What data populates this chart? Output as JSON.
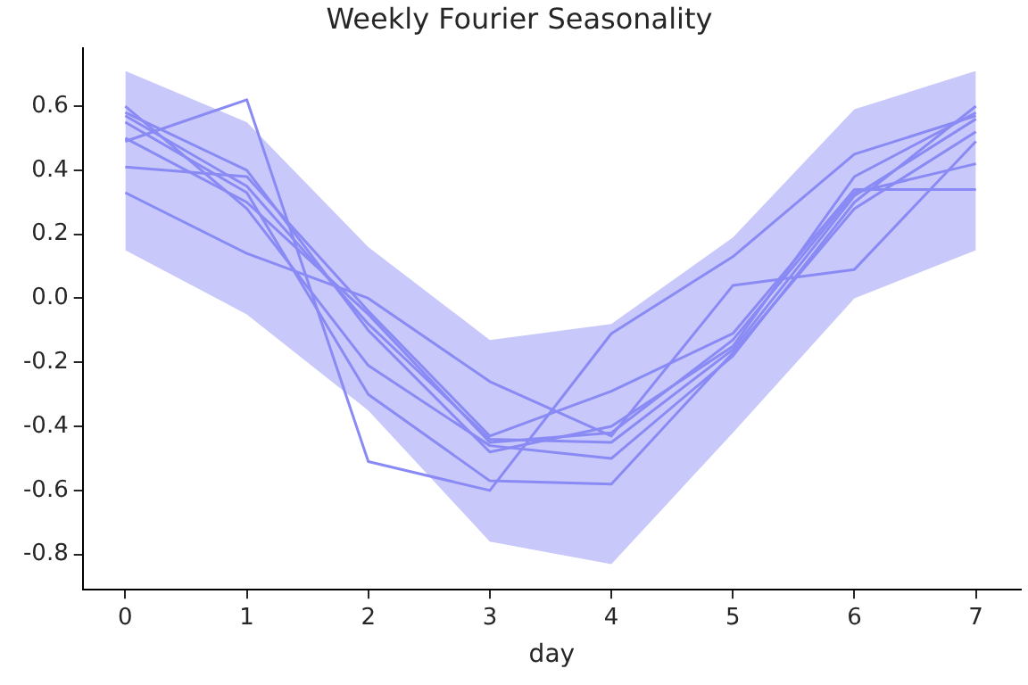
{
  "chart_data": {
    "type": "line",
    "title": "Weekly Fourier Seasonality",
    "xlabel": "day",
    "x": [
      0,
      1,
      2,
      3,
      4,
      5,
      6,
      7
    ],
    "xlim": [
      -0.35,
      7.37
    ],
    "xticks": [
      0,
      1,
      2,
      3,
      4,
      5,
      6,
      7
    ],
    "ylim": [
      -0.91,
      0.78
    ],
    "yticks": [
      -0.8,
      -0.6,
      -0.4,
      -0.2,
      {
        "value": 0,
        "label": "0.0"
      },
      0.2,
      0.4,
      0.6
    ],
    "grid": false,
    "legend": false,
    "marker": "none",
    "line_style": "solid",
    "series": [
      {
        "type": "area",
        "color": "#c8c8fa",
        "values": [
          null,
          null,
          null,
          null,
          null,
          null,
          null,
          null
        ],
        "lower": [
          0.15,
          -0.05,
          -0.35,
          -0.76,
          -0.83,
          -0.42,
          0.0,
          0.15
        ],
        "upper": [
          0.71,
          0.55,
          0.16,
          -0.13,
          -0.08,
          0.19,
          0.59,
          0.71
        ]
      },
      {
        "color": "#8a8af5",
        "values": [
          0.49,
          0.62,
          -0.51,
          -0.6,
          -0.11,
          0.13,
          0.45,
          0.57
        ]
      },
      {
        "color": "#8a8af5",
        "values": [
          0.41,
          0.38,
          -0.04,
          -0.43,
          -0.29,
          -0.11,
          0.34,
          0.34
        ]
      },
      {
        "color": "#8a8af5",
        "values": [
          0.33,
          0.14,
          0.0,
          -0.26,
          -0.43,
          0.04,
          0.09,
          0.49
        ]
      },
      {
        "color": "#8a8af5",
        "values": [
          0.6,
          0.28,
          -0.21,
          -0.46,
          -0.5,
          -0.18,
          0.3,
          0.6
        ]
      },
      {
        "color": "#8a8af5",
        "values": [
          0.58,
          0.4,
          -0.1,
          -0.48,
          -0.4,
          -0.15,
          0.38,
          0.58
        ]
      },
      {
        "color": "#8a8af5",
        "values": [
          0.55,
          0.33,
          -0.3,
          -0.57,
          -0.58,
          -0.17,
          0.28,
          0.52
        ]
      },
      {
        "color": "#8a8af5",
        "values": [
          0.5,
          0.3,
          -0.05,
          -0.45,
          -0.42,
          -0.13,
          0.33,
          0.42
        ]
      },
      {
        "color": "#8a8af5",
        "values": [
          0.57,
          0.35,
          -0.08,
          -0.44,
          -0.45,
          -0.16,
          0.32,
          0.56
        ]
      }
    ]
  }
}
